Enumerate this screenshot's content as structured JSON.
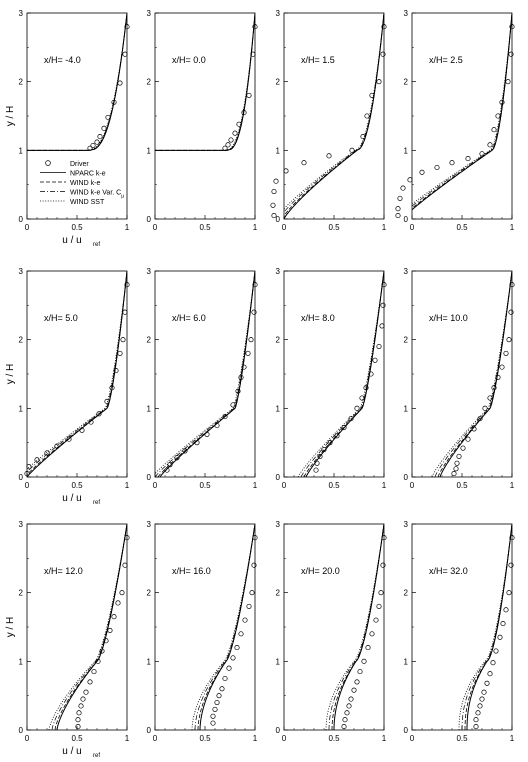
{
  "chart_data": {
    "type": "line",
    "layout": "3x4 small multiples",
    "xlim": [
      0,
      1
    ],
    "ylim": [
      0,
      3
    ],
    "xticks": [
      "0",
      "0.5",
      "1"
    ],
    "yticks": [
      "0",
      "1",
      "2",
      "3"
    ],
    "xlabel": "u / u",
    "xlabel_sub": "ref",
    "ylabel": "y / H",
    "legend": {
      "placement": "bottom-left of first panel",
      "entries": [
        {
          "label": "Driver",
          "style": "circle-markers"
        },
        {
          "label": "NPARC k-e",
          "style": "solid"
        },
        {
          "label": "WIND k-e",
          "style": "dashed"
        },
        {
          "label": "WIND k-e Var. C",
          "sub": "μ",
          "style": "dash-dot"
        },
        {
          "label": "WIND SST",
          "style": "dotted"
        }
      ]
    },
    "panels": [
      {
        "label": "x/H= -4.0",
        "ymin": 1.0,
        "u0": 0.0,
        "u1": 0.62,
        "p": 0.2,
        "q": 2.5,
        "exp": [
          [
            0.63,
            1.03
          ],
          [
            0.66,
            1.07
          ],
          [
            0.7,
            1.12
          ],
          [
            0.73,
            1.2
          ],
          [
            0.77,
            1.32
          ],
          [
            0.81,
            1.48
          ],
          [
            0.87,
            1.7
          ],
          [
            0.93,
            1.98
          ],
          [
            0.98,
            2.4
          ],
          [
            1.0,
            2.8
          ]
        ]
      },
      {
        "label": "x/H= 0.0",
        "ymin": 1.0,
        "u0": 0.0,
        "u1": 0.72,
        "p": 0.2,
        "q": 2.5,
        "exp": [
          [
            0.7,
            1.03
          ],
          [
            0.73,
            1.08
          ],
          [
            0.76,
            1.15
          ],
          [
            0.8,
            1.25
          ],
          [
            0.84,
            1.38
          ],
          [
            0.89,
            1.55
          ],
          [
            0.94,
            1.8
          ],
          [
            0.98,
            2.4
          ],
          [
            1.0,
            2.8
          ]
        ]
      },
      {
        "label": "x/H= 1.5",
        "ymin": 0.0,
        "u0": 0.0,
        "u1": 0.73,
        "p": 1.2,
        "q": 2.0,
        "exp": [
          [
            -0.1,
            0.05
          ],
          [
            -0.11,
            0.2
          ],
          [
            -0.1,
            0.4
          ],
          [
            -0.08,
            0.55
          ],
          [
            0.02,
            0.7
          ],
          [
            0.2,
            0.82
          ],
          [
            0.45,
            0.92
          ],
          [
            0.68,
            1.0
          ],
          [
            0.79,
            1.2
          ],
          [
            0.83,
            1.5
          ],
          [
            0.88,
            1.8
          ],
          [
            0.95,
            2.0
          ],
          [
            0.99,
            2.4
          ],
          [
            1.0,
            2.8
          ]
        ]
      },
      {
        "label": "x/H= 2.5",
        "ymin": 0.0,
        "u0": -0.1,
        "u1": 0.8,
        "p": 1.1,
        "q": 1.7,
        "exp": [
          [
            -0.14,
            0.05
          ],
          [
            -0.14,
            0.15
          ],
          [
            -0.12,
            0.3
          ],
          [
            -0.09,
            0.45
          ],
          [
            -0.02,
            0.57
          ],
          [
            0.1,
            0.68
          ],
          [
            0.25,
            0.75
          ],
          [
            0.4,
            0.82
          ],
          [
            0.56,
            0.88
          ],
          [
            0.7,
            0.95
          ],
          [
            0.78,
            1.08
          ],
          [
            0.82,
            1.3
          ],
          [
            0.86,
            1.5
          ],
          [
            0.9,
            1.7
          ],
          [
            0.96,
            2.0
          ],
          [
            0.99,
            2.4
          ],
          [
            1.0,
            2.8
          ]
        ]
      },
      {
        "label": "x/H= 5.0",
        "ymin": 0.0,
        "u0": 0.0,
        "u1": 0.8,
        "p": 1.1,
        "q": 1.4,
        "exp": [
          [
            0.0,
            0.05
          ],
          [
            0.02,
            0.15
          ],
          [
            0.1,
            0.25
          ],
          [
            0.2,
            0.35
          ],
          [
            0.3,
            0.45
          ],
          [
            0.42,
            0.55
          ],
          [
            0.55,
            0.68
          ],
          [
            0.64,
            0.8
          ],
          [
            0.72,
            0.92
          ],
          [
            0.8,
            1.1
          ],
          [
            0.85,
            1.3
          ],
          [
            0.89,
            1.55
          ],
          [
            0.93,
            1.8
          ],
          [
            0.96,
            2.0
          ],
          [
            0.98,
            2.4
          ],
          [
            1.0,
            2.8
          ]
        ]
      },
      {
        "label": "x/H= 6.0",
        "ymin": 0.0,
        "u0": 0.05,
        "u1": 0.8,
        "p": 1.1,
        "q": 1.3,
        "exp": [
          [
            0.12,
            0.1
          ],
          [
            0.15,
            0.18
          ],
          [
            0.22,
            0.28
          ],
          [
            0.3,
            0.38
          ],
          [
            0.42,
            0.5
          ],
          [
            0.52,
            0.62
          ],
          [
            0.62,
            0.75
          ],
          [
            0.7,
            0.88
          ],
          [
            0.78,
            1.05
          ],
          [
            0.83,
            1.25
          ],
          [
            0.86,
            1.45
          ],
          [
            0.89,
            1.6
          ],
          [
            0.93,
            1.8
          ],
          [
            0.96,
            2.0
          ],
          [
            0.99,
            2.4
          ],
          [
            1.0,
            2.8
          ]
        ]
      },
      {
        "label": "x/H= 8.0",
        "ymin": 0.0,
        "u0": 0.22,
        "u1": 0.78,
        "p": 1.15,
        "q": 1.3,
        "exp": [
          [
            0.32,
            0.1
          ],
          [
            0.33,
            0.2
          ],
          [
            0.36,
            0.3
          ],
          [
            0.4,
            0.4
          ],
          [
            0.46,
            0.5
          ],
          [
            0.53,
            0.6
          ],
          [
            0.6,
            0.72
          ],
          [
            0.67,
            0.85
          ],
          [
            0.73,
            1.0
          ],
          [
            0.78,
            1.15
          ],
          [
            0.82,
            1.3
          ],
          [
            0.87,
            1.5
          ],
          [
            0.91,
            1.7
          ],
          [
            0.95,
            1.9
          ],
          [
            0.98,
            2.2
          ],
          [
            0.99,
            2.5
          ],
          [
            1.0,
            2.8
          ]
        ]
      },
      {
        "label": "x/H= 10.0",
        "ymin": 0.0,
        "u0": 0.28,
        "u1": 0.78,
        "p": 1.2,
        "q": 1.3,
        "exp": [
          [
            0.42,
            0.05
          ],
          [
            0.44,
            0.12
          ],
          [
            0.45,
            0.2
          ],
          [
            0.47,
            0.3
          ],
          [
            0.51,
            0.42
          ],
          [
            0.56,
            0.55
          ],
          [
            0.62,
            0.7
          ],
          [
            0.68,
            0.85
          ],
          [
            0.73,
            1.0
          ],
          [
            0.78,
            1.15
          ],
          [
            0.82,
            1.3
          ],
          [
            0.86,
            1.45
          ],
          [
            0.9,
            1.6
          ],
          [
            0.94,
            1.8
          ],
          [
            0.97,
            2.0
          ],
          [
            0.99,
            2.4
          ],
          [
            1.0,
            2.8
          ]
        ]
      },
      {
        "label": "x/H= 12.0",
        "ymin": 0.0,
        "u0": 0.3,
        "u1": 0.7,
        "p": 1.4,
        "q": 1.4,
        "exp": [
          [
            0.51,
            0.05
          ],
          [
            0.51,
            0.15
          ],
          [
            0.52,
            0.25
          ],
          [
            0.54,
            0.35
          ],
          [
            0.56,
            0.45
          ],
          [
            0.59,
            0.55
          ],
          [
            0.63,
            0.7
          ],
          [
            0.67,
            0.85
          ],
          [
            0.71,
            1.0
          ],
          [
            0.75,
            1.15
          ],
          [
            0.79,
            1.3
          ],
          [
            0.83,
            1.45
          ],
          [
            0.87,
            1.65
          ],
          [
            0.91,
            1.85
          ],
          [
            0.95,
            2.0
          ],
          [
            0.98,
            2.4
          ],
          [
            1.0,
            2.8
          ]
        ]
      },
      {
        "label": "x/H= 16.0",
        "ymin": 0.0,
        "u0": 0.45,
        "u1": 0.71,
        "p": 1.8,
        "q": 1.4,
        "exp": [
          [
            0.58,
            0.1
          ],
          [
            0.58,
            0.2
          ],
          [
            0.6,
            0.3
          ],
          [
            0.62,
            0.4
          ],
          [
            0.64,
            0.5
          ],
          [
            0.67,
            0.6
          ],
          [
            0.7,
            0.75
          ],
          [
            0.74,
            0.9
          ],
          [
            0.78,
            1.05
          ],
          [
            0.82,
            1.2
          ],
          [
            0.86,
            1.4
          ],
          [
            0.9,
            1.6
          ],
          [
            0.94,
            1.8
          ],
          [
            0.97,
            2.0
          ],
          [
            0.99,
            2.4
          ],
          [
            1.0,
            2.8
          ]
        ]
      },
      {
        "label": "x/H= 20.0",
        "ymin": 0.0,
        "u0": 0.5,
        "u1": 0.72,
        "p": 2.0,
        "q": 1.5,
        "exp": [
          [
            0.6,
            0.05
          ],
          [
            0.61,
            0.15
          ],
          [
            0.63,
            0.25
          ],
          [
            0.65,
            0.35
          ],
          [
            0.67,
            0.45
          ],
          [
            0.7,
            0.58
          ],
          [
            0.73,
            0.7
          ],
          [
            0.76,
            0.85
          ],
          [
            0.8,
            1.0
          ],
          [
            0.84,
            1.2
          ],
          [
            0.88,
            1.4
          ],
          [
            0.92,
            1.6
          ],
          [
            0.95,
            1.8
          ],
          [
            0.97,
            2.0
          ],
          [
            0.99,
            2.4
          ],
          [
            1.0,
            2.8
          ]
        ]
      },
      {
        "label": "x/H= 32.0",
        "ymin": 0.0,
        "u0": 0.55,
        "u1": 0.75,
        "p": 2.2,
        "q": 1.6,
        "exp": [
          [
            0.64,
            0.05
          ],
          [
            0.64,
            0.15
          ],
          [
            0.66,
            0.25
          ],
          [
            0.68,
            0.35
          ],
          [
            0.7,
            0.45
          ],
          [
            0.72,
            0.55
          ],
          [
            0.75,
            0.68
          ],
          [
            0.78,
            0.82
          ],
          [
            0.81,
            0.98
          ],
          [
            0.84,
            1.15
          ],
          [
            0.88,
            1.35
          ],
          [
            0.91,
            1.55
          ],
          [
            0.94,
            1.75
          ],
          [
            0.97,
            2.0
          ],
          [
            0.99,
            2.4
          ],
          [
            1.0,
            2.8
          ]
        ]
      }
    ]
  }
}
